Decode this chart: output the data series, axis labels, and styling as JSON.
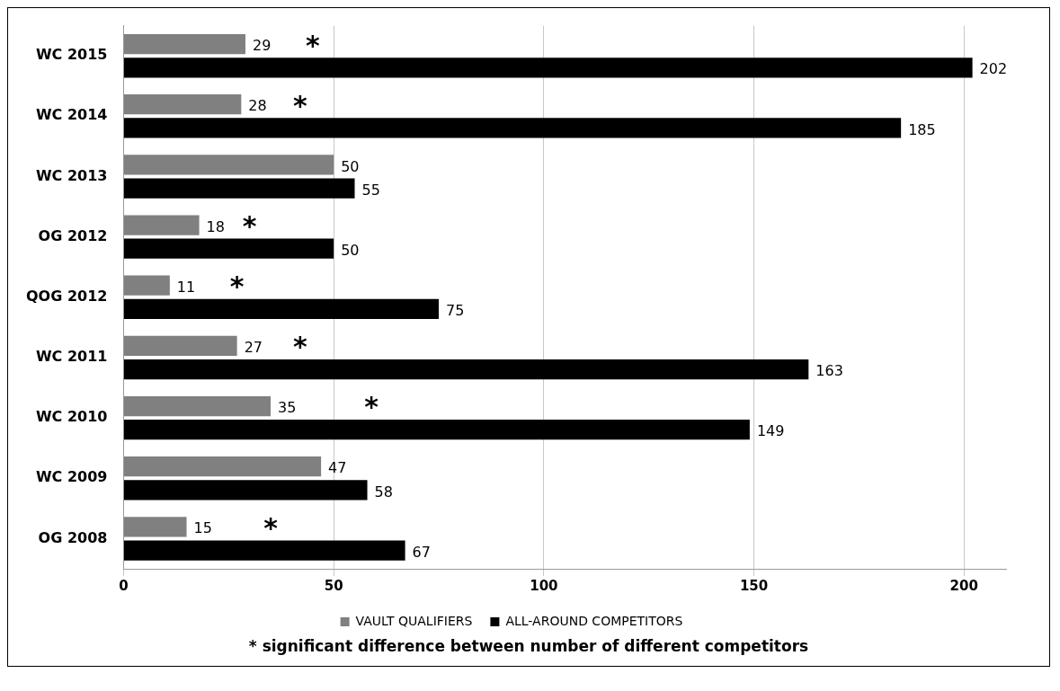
{
  "chart_data": {
    "type": "bar",
    "orientation": "horizontal",
    "categories": [
      "WC 2015",
      "WC 2014",
      "WC 2013",
      "OG 2012",
      "QOG 2012",
      "WC 2011",
      "WC 2010",
      "WC 2009",
      "OG 2008"
    ],
    "series": [
      {
        "name": "VAULT QUALIFIERS",
        "color": "#808080",
        "values": [
          29,
          28,
          50,
          18,
          11,
          27,
          35,
          47,
          15
        ]
      },
      {
        "name": "ALL-AROUND COMPETITORS",
        "color": "#000000",
        "values": [
          202,
          185,
          55,
          50,
          75,
          163,
          149,
          58,
          67
        ]
      }
    ],
    "xlim": [
      0,
      210
    ],
    "xticks": [
      0,
      50,
      100,
      150,
      200
    ],
    "grid": "x",
    "legend": "bottom",
    "data_labels": true,
    "annotations": [
      {
        "text": "*",
        "x": 45,
        "y": "WC 2015"
      },
      {
        "text": "*",
        "x": 42,
        "y": "WC 2014"
      },
      {
        "text": "*",
        "x": 30,
        "y": "OG 2012"
      },
      {
        "text": "*",
        "x": 27,
        "y": "QOG 2012"
      },
      {
        "text": "*",
        "x": 42,
        "y": "WC 2011"
      },
      {
        "text": "*",
        "x": 59,
        "y": "WC 2010"
      },
      {
        "text": "*",
        "x": 35,
        "y": "OG 2008"
      },
      "* significant difference between number of different competitors"
    ]
  }
}
